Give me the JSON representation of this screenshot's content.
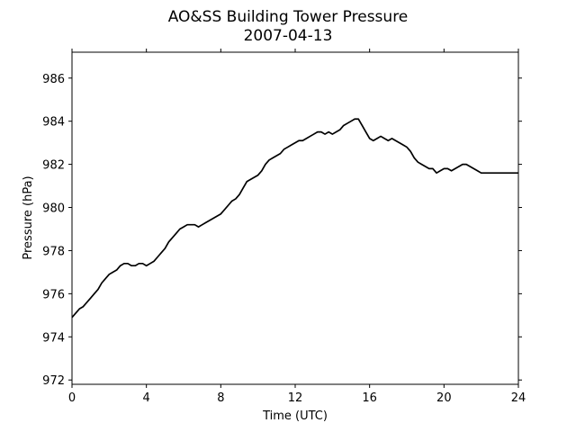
{
  "chart_data": {
    "type": "line",
    "title": "AO&SS Building Tower Pressure",
    "subtitle": "2007-04-13",
    "xlabel": "Time (UTC)",
    "ylabel": "Pressure (hPa)",
    "xlim": [
      0,
      24
    ],
    "ylim": [
      971.8,
      987.2
    ],
    "xticks": [
      0,
      4,
      8,
      12,
      16,
      20,
      24
    ],
    "yticks": [
      972,
      974,
      976,
      978,
      980,
      982,
      984,
      986
    ],
    "grid": false,
    "line_color": "#000000",
    "series": [
      {
        "x": [
          0,
          0.2,
          0.4,
          0.6,
          0.8,
          1.0,
          1.2,
          1.4,
          1.6,
          1.8,
          2.0,
          2.2,
          2.4,
          2.6,
          2.8,
          3.0,
          3.2,
          3.4,
          3.6,
          3.8,
          4.0,
          4.2,
          4.4,
          4.6,
          4.8,
          5.0,
          5.2,
          5.4,
          5.6,
          5.8,
          6.0,
          6.2,
          6.4,
          6.6,
          6.8,
          7.0,
          7.2,
          7.4,
          7.6,
          7.8,
          8.0,
          8.2,
          8.4,
          8.6,
          8.8,
          9.0,
          9.2,
          9.4,
          9.6,
          9.8,
          10.0,
          10.2,
          10.4,
          10.6,
          10.8,
          11.0,
          11.2,
          11.4,
          11.6,
          11.8,
          12.0,
          12.2,
          12.4,
          12.6,
          12.8,
          13.0,
          13.2,
          13.4,
          13.6,
          13.8,
          14.0,
          14.2,
          14.4,
          14.6,
          14.8,
          15.0,
          15.2,
          15.4,
          15.6,
          15.8,
          16.0,
          16.2,
          16.4,
          16.6,
          16.8,
          17.0,
          17.2,
          17.4,
          17.6,
          17.8,
          18.0,
          18.2,
          18.4,
          18.6,
          18.8,
          19.0,
          19.2,
          19.4,
          19.6,
          19.8,
          20.0,
          20.2,
          20.4,
          20.6,
          20.8,
          21.0,
          21.2,
          21.4,
          21.6,
          21.8,
          22.0,
          22.2,
          22.4,
          22.6,
          22.8,
          23.0,
          23.2,
          23.4,
          23.6,
          23.8,
          24.0
        ],
        "y": [
          974.9,
          975.1,
          975.3,
          975.4,
          975.6,
          975.8,
          976.0,
          976.2,
          976.5,
          976.7,
          976.9,
          977.0,
          977.1,
          977.3,
          977.4,
          977.4,
          977.3,
          977.3,
          977.4,
          977.4,
          977.3,
          977.4,
          977.5,
          977.7,
          977.9,
          978.1,
          978.4,
          978.6,
          978.8,
          979.0,
          979.1,
          979.2,
          979.2,
          979.2,
          979.1,
          979.2,
          979.3,
          979.4,
          979.5,
          979.6,
          979.7,
          979.9,
          980.1,
          980.3,
          980.4,
          980.6,
          980.9,
          981.2,
          981.3,
          981.4,
          981.5,
          981.7,
          982.0,
          982.2,
          982.3,
          982.4,
          982.5,
          982.7,
          982.8,
          982.9,
          983.0,
          983.1,
          983.1,
          983.2,
          983.3,
          983.4,
          983.5,
          983.5,
          983.4,
          983.5,
          983.4,
          983.5,
          983.6,
          983.8,
          983.9,
          984.0,
          984.1,
          984.1,
          983.8,
          983.5,
          983.2,
          983.1,
          983.2,
          983.3,
          983.2,
          983.1,
          983.2,
          983.1,
          983.0,
          982.9,
          982.8,
          982.6,
          982.3,
          982.1,
          982.0,
          981.9,
          981.8,
          981.8,
          981.6,
          981.7,
          981.8,
          981.8,
          981.7,
          981.8,
          981.9,
          982.0,
          982.0,
          981.9,
          981.8,
          981.7,
          981.6,
          981.6,
          981.6,
          981.6,
          981.6,
          981.6,
          981.6,
          981.6,
          981.6,
          981.6,
          981.6
        ]
      }
    ]
  }
}
